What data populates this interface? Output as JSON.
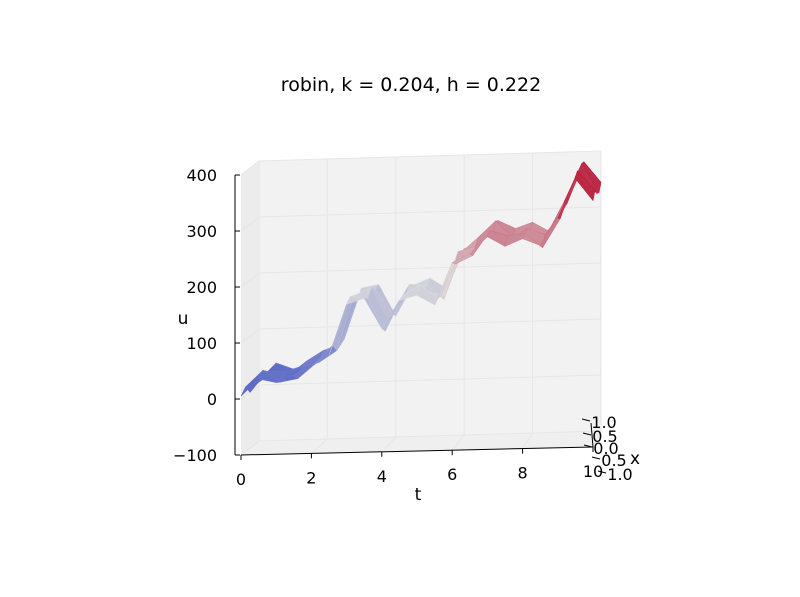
{
  "chart_data": {
    "type": "surface",
    "title": "robin, k = 0.204, h = 0.222",
    "xlabel": "t",
    "ylabel": "x",
    "zlabel": "u",
    "xlim": [
      0,
      10
    ],
    "ylim": [
      -1.0,
      1.0
    ],
    "zlim": [
      -100,
      400
    ],
    "x_ticks": [
      "0",
      "2",
      "4",
      "6",
      "8",
      "10"
    ],
    "y_ticks": [
      "1.0",
      "0.5",
      "0.0",
      "0.5",
      "1.0"
    ],
    "z_ticks": [
      "400",
      "300",
      "200",
      "100",
      "0",
      "−100"
    ],
    "colormap": "coolwarm",
    "grid": true,
    "t": [
      0,
      0.5,
      1,
      1.5,
      2,
      2.5,
      3,
      3.5,
      4,
      4.5,
      5,
      5.5,
      6,
      6.5,
      7,
      7.5,
      8,
      8.5,
      9,
      9.5,
      10
    ],
    "u_profile": [
      5,
      35,
      28,
      40,
      55,
      75,
      165,
      175,
      120,
      170,
      178,
      160,
      235,
      250,
      280,
      262,
      275,
      262,
      310,
      380,
      340
    ],
    "colors": {
      "low": "#3b4cc0",
      "mid": "#dddddd",
      "high": "#b40426",
      "pane": "#f2f2f2",
      "grid": "#e6e6e6"
    }
  }
}
